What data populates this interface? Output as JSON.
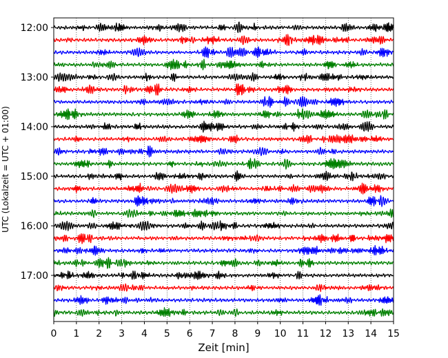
{
  "chart_data": {
    "type": "line",
    "title": "",
    "xlabel": "Zeit  [min]",
    "ylabel": "UTC (Lokalzeit = UTC + 01:00)",
    "xlim": [
      0,
      15
    ],
    "x_ticks": [
      "0",
      "1",
      "2",
      "3",
      "4",
      "5",
      "6",
      "7",
      "8",
      "9",
      "10",
      "11",
      "12",
      "13",
      "14",
      "15"
    ],
    "y_ticks": [
      "12:00",
      "13:00",
      "14:00",
      "15:00",
      "16:00",
      "17:00"
    ],
    "grid": "vertical dotted lines at each minute",
    "trace_interval_min": 15,
    "start_time": "12:00",
    "trace_count": 24,
    "trace_colors": [
      "#000000",
      "#ff0000",
      "#0000ff",
      "#008000"
    ],
    "series": [
      {
        "start": "12:00",
        "color": "#000000"
      },
      {
        "start": "12:15",
        "color": "#ff0000"
      },
      {
        "start": "12:30",
        "color": "#0000ff"
      },
      {
        "start": "12:45",
        "color": "#008000"
      },
      {
        "start": "13:00",
        "color": "#000000"
      },
      {
        "start": "13:15",
        "color": "#ff0000"
      },
      {
        "start": "13:30",
        "color": "#0000ff"
      },
      {
        "start": "13:45",
        "color": "#008000"
      },
      {
        "start": "14:00",
        "color": "#000000"
      },
      {
        "start": "14:15",
        "color": "#ff0000"
      },
      {
        "start": "14:30",
        "color": "#0000ff"
      },
      {
        "start": "14:45",
        "color": "#008000"
      },
      {
        "start": "15:00",
        "color": "#000000"
      },
      {
        "start": "15:15",
        "color": "#ff0000"
      },
      {
        "start": "15:30",
        "color": "#0000ff"
      },
      {
        "start": "15:45",
        "color": "#008000"
      },
      {
        "start": "16:00",
        "color": "#000000"
      },
      {
        "start": "16:15",
        "color": "#ff0000"
      },
      {
        "start": "16:30",
        "color": "#0000ff"
      },
      {
        "start": "16:45",
        "color": "#008000"
      },
      {
        "start": "17:00",
        "color": "#000000"
      },
      {
        "start": "17:15",
        "color": "#ff0000"
      },
      {
        "start": "17:30",
        "color": "#0000ff"
      },
      {
        "start": "17:45",
        "color": "#008000"
      }
    ]
  }
}
